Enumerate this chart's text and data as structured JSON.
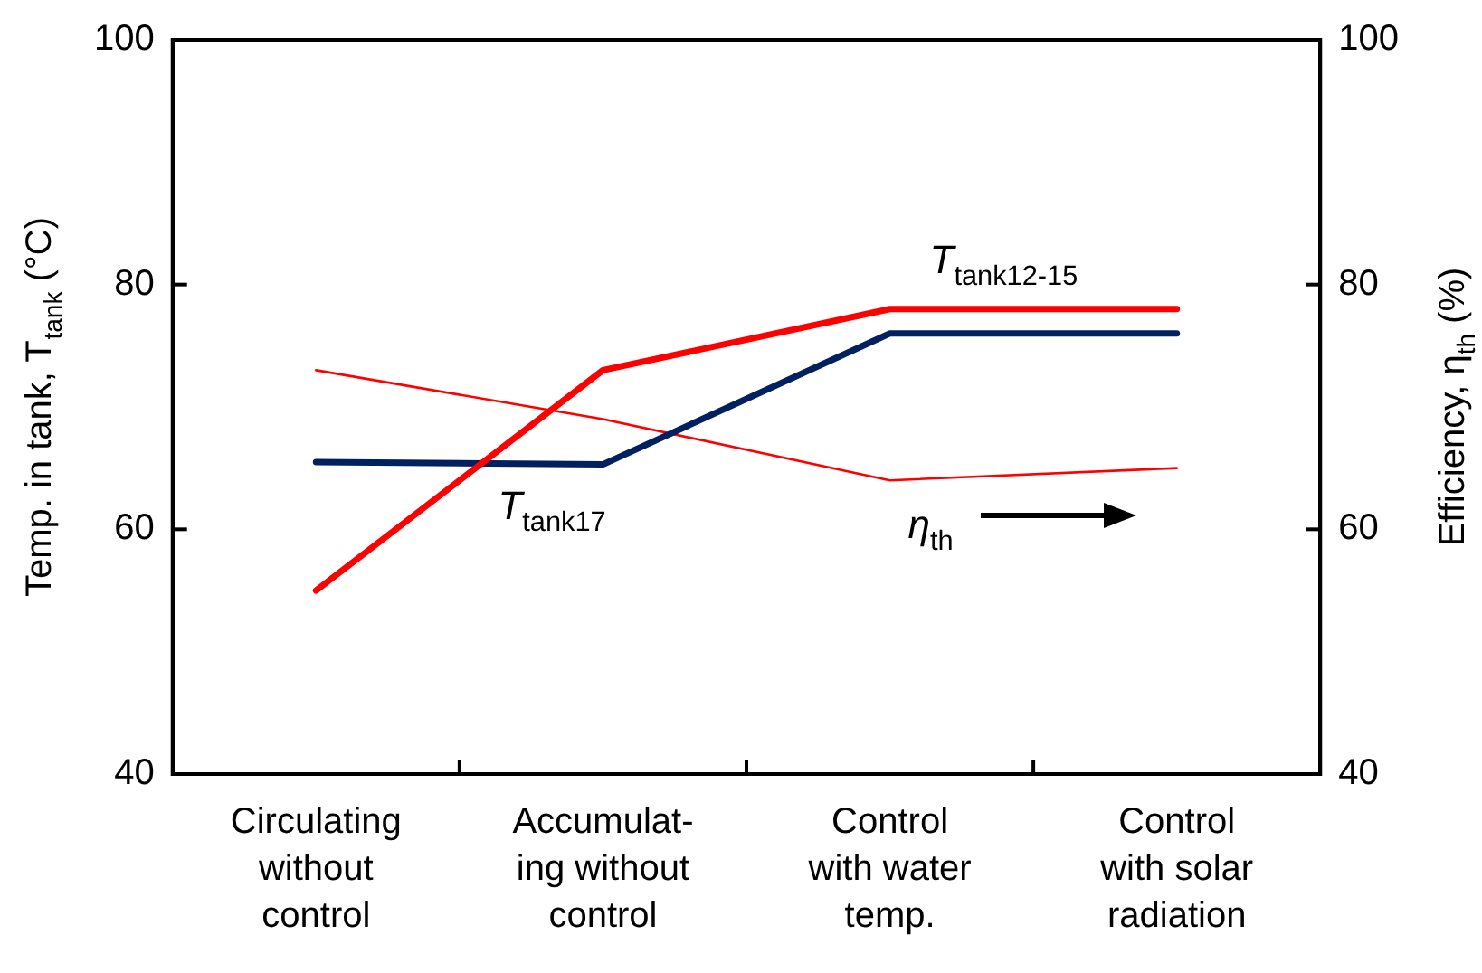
{
  "chart_data": {
    "type": "line",
    "categories": [
      "Circulating\nwithout\ncontrol",
      "Accumulat-\ning without\ncontrol",
      "Control\nwith water\ntemp.",
      "Control\nwith solar\nradiation"
    ],
    "series": [
      {
        "name": "T$_{tank12-15}$",
        "color": "#ff0000",
        "values": [
          55,
          73,
          78,
          78
        ]
      },
      {
        "name": "T$_{tank17}$",
        "color": "#002060",
        "values": [
          65.5,
          65.3,
          76,
          76
        ]
      },
      {
        "name": "η$_{th}$",
        "color": "#ff0000",
        "values": [
          73,
          69,
          64,
          65
        ],
        "axis": "y2"
      }
    ],
    "ylabel": "Temp. in tank, T$_{tank}$ (°C)",
    "y2label": "Efficiency, η$_{th}$ (%)",
    "ylim": [
      40,
      100
    ],
    "yticks": [
      40,
      60,
      80,
      100
    ],
    "y2lim": [
      40,
      100
    ],
    "y2ticks": [
      40,
      60,
      80,
      100
    ],
    "grid": false,
    "legend": false,
    "marker": "none",
    "line_style": "solid"
  }
}
